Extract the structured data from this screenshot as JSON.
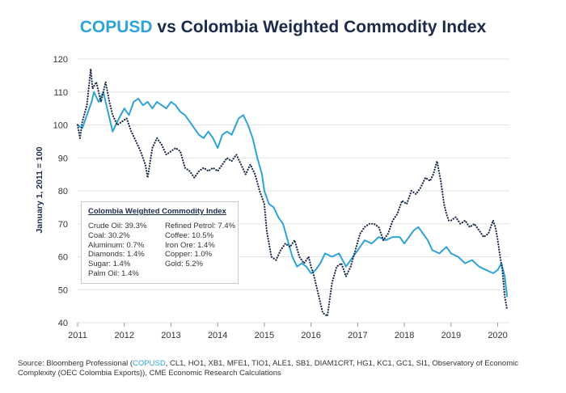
{
  "title": {
    "accent": "COPUSD",
    "rest": " vs Colombia Weighted Commodity Index"
  },
  "legend_box": {
    "title": "Colombia Weighted Commodity Index",
    "col1": [
      "Crude Oil: 39.3%",
      "Coal: 30.2%",
      "Aluminum: 0.7%",
      "Diamonds: 1.4%",
      "Sugar: 1.4%",
      "Palm Oil: 1.4%"
    ],
    "col2": [
      "Refined Petrol: 7.4%",
      "Coffee: 10.5%",
      "Iron Ore: 1.4%",
      "Copper: 1.0%",
      "Gold: 5.2%"
    ]
  },
  "source": {
    "prefix": "Source: Bloomberg Professional (",
    "accent": "COPUSD",
    "rest": ", CL1, HO1, XB1, MFE1, TIO1, ALE1, SB1, DIAM1CRT, HG1, KC1, GC1, SI1, Observatory of Economic Complexity (OEC Colombia Exports)), CME Economic Research Calculations"
  },
  "colors": {
    "copusd": "#2ea3d8",
    "index": "#1b2a4a",
    "grid": "#e3e3e3",
    "text": "#333333"
  },
  "chart_data": {
    "type": "line",
    "title": "COPUSD vs Colombia Weighted Commodity Index",
    "xlabel": "",
    "ylabel": "January 1, 2011 = 100",
    "xlim": [
      2011,
      2020.25
    ],
    "ylim": [
      40,
      120
    ],
    "x_ticks": [
      "2011",
      "2012",
      "2013",
      "2014",
      "2015",
      "2016",
      "2017",
      "2018",
      "2019",
      "2020"
    ],
    "y_ticks": [
      40,
      50,
      60,
      70,
      80,
      90,
      100,
      110,
      120
    ],
    "series": [
      {
        "name": "COPUSD",
        "style": "solid",
        "color": "#2ea3d8",
        "x": [
          2011.0,
          2011.1,
          2011.2,
          2011.3,
          2011.35,
          2011.45,
          2011.55,
          2011.65,
          2011.75,
          2011.85,
          2012.0,
          2012.1,
          2012.2,
          2012.3,
          2012.4,
          2012.5,
          2012.6,
          2012.7,
          2012.8,
          2012.9,
          2013.0,
          2013.1,
          2013.2,
          2013.3,
          2013.4,
          2013.5,
          2013.6,
          2013.7,
          2013.8,
          2013.9,
          2014.0,
          2014.1,
          2014.2,
          2014.3,
          2014.45,
          2014.55,
          2014.65,
          2014.75,
          2014.85,
          2014.95,
          2015.0,
          2015.1,
          2015.2,
          2015.3,
          2015.4,
          2015.5,
          2015.6,
          2015.7,
          2015.8,
          2015.9,
          2016.0,
          2016.1,
          2016.2,
          2016.3,
          2016.45,
          2016.6,
          2016.75,
          2016.9,
          2017.0,
          2017.15,
          2017.3,
          2017.45,
          2017.6,
          2017.75,
          2017.9,
          2018.0,
          2018.1,
          2018.2,
          2018.3,
          2018.4,
          2018.5,
          2018.6,
          2018.75,
          2018.9,
          2019.0,
          2019.15,
          2019.3,
          2019.45,
          2019.6,
          2019.75,
          2019.9,
          2020.0,
          2020.08,
          2020.15,
          2020.2
        ],
        "y": [
          100,
          99,
          103,
          107,
          110,
          107,
          110,
          104,
          98,
          101,
          105,
          103,
          107,
          108,
          106,
          107,
          105,
          107,
          106,
          105,
          107,
          106,
          104,
          103,
          101,
          99,
          97,
          96,
          98,
          96,
          93,
          97,
          98,
          97,
          102,
          103,
          100,
          96,
          90,
          85,
          80,
          76,
          75,
          72,
          70,
          65,
          60,
          57,
          58,
          57,
          55,
          56,
          58,
          61,
          60,
          61,
          57,
          60,
          62,
          65,
          64,
          66,
          65,
          66,
          66,
          64,
          66,
          68,
          69,
          67,
          65,
          62,
          61,
          63,
          61,
          60,
          58,
          59,
          57,
          56,
          55,
          56,
          58,
          54,
          48
        ]
      },
      {
        "name": "Colombia Weighted Commodity Index",
        "style": "dotted",
        "color": "#1b2a4a",
        "x": [
          2011.0,
          2011.05,
          2011.1,
          2011.2,
          2011.28,
          2011.32,
          2011.4,
          2011.5,
          2011.6,
          2011.68,
          2011.75,
          2011.85,
          2011.95,
          2012.05,
          2012.15,
          2012.25,
          2012.35,
          2012.45,
          2012.5,
          2012.6,
          2012.7,
          2012.8,
          2012.9,
          2013.0,
          2013.1,
          2013.2,
          2013.3,
          2013.4,
          2013.5,
          2013.6,
          2013.7,
          2013.8,
          2013.9,
          2014.0,
          2014.1,
          2014.2,
          2014.3,
          2014.4,
          2014.5,
          2014.6,
          2014.7,
          2014.8,
          2014.9,
          2015.0,
          2015.05,
          2015.15,
          2015.25,
          2015.35,
          2015.45,
          2015.55,
          2015.65,
          2015.75,
          2015.85,
          2015.95,
          2016.0,
          2016.05,
          2016.15,
          2016.25,
          2016.35,
          2016.45,
          2016.55,
          2016.65,
          2016.75,
          2016.85,
          2016.95,
          2017.05,
          2017.15,
          2017.25,
          2017.35,
          2017.45,
          2017.55,
          2017.65,
          2017.75,
          2017.85,
          2017.95,
          2018.05,
          2018.15,
          2018.25,
          2018.35,
          2018.45,
          2018.55,
          2018.62,
          2018.7,
          2018.78,
          2018.85,
          2018.9,
          2018.95,
          2019.0,
          2019.1,
          2019.2,
          2019.3,
          2019.4,
          2019.5,
          2019.6,
          2019.7,
          2019.8,
          2019.9,
          2019.95,
          2020.0,
          2020.05,
          2020.1,
          2020.15,
          2020.2
        ],
        "y": [
          100,
          96,
          101,
          106,
          117,
          111,
          113,
          107,
          113,
          107,
          103,
          100,
          101,
          102,
          98,
          95,
          92,
          88,
          84,
          93,
          96,
          94,
          91,
          92,
          93,
          92,
          87,
          86,
          84,
          86,
          87,
          86,
          87,
          86,
          88,
          90,
          89,
          91,
          88,
          85,
          88,
          85,
          80,
          76,
          68,
          60,
          59,
          62,
          64,
          63,
          65,
          60,
          58,
          60,
          57,
          55,
          49,
          43,
          42,
          52,
          57,
          58,
          54,
          57,
          62,
          67,
          69,
          70,
          70,
          69,
          65,
          67,
          71,
          73,
          77,
          76,
          80,
          79,
          81,
          84,
          83,
          85,
          89,
          83,
          76,
          73,
          71,
          71,
          72,
          70,
          71,
          69,
          70,
          68,
          66,
          67,
          71,
          69,
          65,
          60,
          56,
          48,
          44
        ]
      }
    ]
  }
}
